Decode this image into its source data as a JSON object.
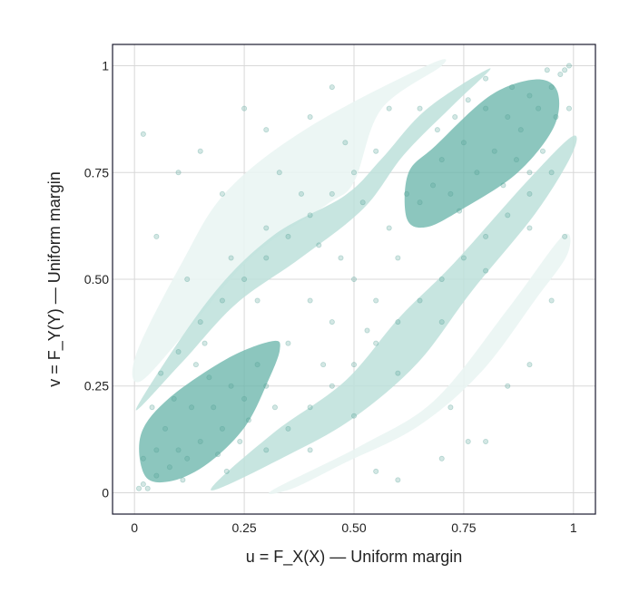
{
  "chart_data": {
    "type": "scatter",
    "xlabel": "u = F_X(X) — Uniform margin",
    "ylabel": "v = F_Y(Y) — Uniform margin",
    "xlim": [
      -0.05,
      1.05
    ],
    "ylim": [
      -0.05,
      1.05
    ],
    "grid": true,
    "xticks": [
      {
        "v": 0,
        "label": "0"
      },
      {
        "v": 0.25,
        "label": "0.25"
      },
      {
        "v": 0.5,
        "label": "0.50"
      },
      {
        "v": 0.75,
        "label": "0.75"
      },
      {
        "v": 1,
        "label": "1"
      }
    ],
    "yticks": [
      {
        "v": 0,
        "label": "0"
      },
      {
        "v": 0.25,
        "label": "0.25"
      },
      {
        "v": 0.5,
        "label": "0.50"
      },
      {
        "v": 0.75,
        "label": "0.75"
      },
      {
        "v": 1,
        "label": "1"
      }
    ],
    "colors": {
      "points": "#4f9e93",
      "level1": "#eaf5f3",
      "level2": "#bde0db",
      "level3": "#6fb8ae",
      "frame": "#1a1a2e",
      "grid": "#d8d8d8"
    },
    "density_contours": [
      {
        "level": 1,
        "polygon": [
          [
            0.004,
            0.325
          ],
          [
            0.107,
            0.537
          ],
          [
            0.211,
            0.707
          ],
          [
            0.397,
            0.856
          ],
          [
            0.665,
            1.0
          ],
          [
            0.7,
            1.0
          ],
          [
            0.562,
            0.898
          ],
          [
            0.5,
            0.728
          ],
          [
            0.438,
            0.675
          ],
          [
            0.273,
            0.558
          ],
          [
            0.128,
            0.389
          ],
          [
            0.014,
            0.261
          ]
        ]
      },
      {
        "level": 1,
        "polygon": [
          [
            0.314,
            0.006
          ],
          [
            0.521,
            0.113
          ],
          [
            0.686,
            0.219
          ],
          [
            0.851,
            0.431
          ],
          [
            0.975,
            0.601
          ],
          [
            0.986,
            0.558
          ],
          [
            0.913,
            0.452
          ],
          [
            0.789,
            0.282
          ],
          [
            0.645,
            0.155
          ],
          [
            0.479,
            0.07
          ],
          [
            0.36,
            0.01
          ]
        ]
      },
      {
        "level": 2,
        "polygon": [
          [
            0.004,
            0.197
          ],
          [
            0.169,
            0.452
          ],
          [
            0.314,
            0.601
          ],
          [
            0.479,
            0.696
          ],
          [
            0.562,
            0.781
          ],
          [
            0.665,
            0.898
          ],
          [
            0.81,
            0.994
          ],
          [
            0.727,
            0.909
          ],
          [
            0.614,
            0.792
          ],
          [
            0.521,
            0.665
          ],
          [
            0.376,
            0.548
          ],
          [
            0.231,
            0.442
          ],
          [
            0.107,
            0.304
          ]
        ]
      },
      {
        "level": 2,
        "polygon": [
          [
            0.174,
            0.006
          ],
          [
            0.314,
            0.138
          ],
          [
            0.479,
            0.261
          ],
          [
            0.603,
            0.41
          ],
          [
            0.727,
            0.537
          ],
          [
            0.893,
            0.728
          ],
          [
            0.996,
            0.834
          ],
          [
            0.996,
            0.792
          ],
          [
            0.913,
            0.654
          ],
          [
            0.769,
            0.473
          ],
          [
            0.645,
            0.304
          ],
          [
            0.5,
            0.176
          ],
          [
            0.355,
            0.091
          ]
        ]
      },
      {
        "level": 3,
        "polygon": [
          [
            0.025,
            0.038
          ],
          [
            0.014,
            0.134
          ],
          [
            0.076,
            0.219
          ],
          [
            0.211,
            0.314
          ],
          [
            0.314,
            0.355
          ],
          [
            0.331,
            0.335
          ],
          [
            0.304,
            0.261
          ],
          [
            0.252,
            0.155
          ],
          [
            0.169,
            0.07
          ],
          [
            0.087,
            0.028
          ]
        ]
      },
      {
        "level": 3,
        "polygon": [
          [
            0.62,
            0.643
          ],
          [
            0.624,
            0.749
          ],
          [
            0.686,
            0.813
          ],
          [
            0.81,
            0.93
          ],
          [
            0.913,
            0.968
          ],
          [
            0.963,
            0.941
          ],
          [
            0.955,
            0.856
          ],
          [
            0.872,
            0.749
          ],
          [
            0.748,
            0.665
          ],
          [
            0.665,
            0.622
          ]
        ]
      }
    ],
    "points": [
      [
        0.01,
        0.01
      ],
      [
        0.02,
        0.02
      ],
      [
        0.03,
        0.01
      ],
      [
        0.05,
        0.04
      ],
      [
        0.08,
        0.06
      ],
      [
        0.1,
        0.1
      ],
      [
        0.12,
        0.08
      ],
      [
        0.15,
        0.12
      ],
      [
        0.07,
        0.15
      ],
      [
        0.18,
        0.2
      ],
      [
        0.2,
        0.15
      ],
      [
        0.22,
        0.25
      ],
      [
        0.25,
        0.22
      ],
      [
        0.13,
        0.2
      ],
      [
        0.17,
        0.27
      ],
      [
        0.28,
        0.3
      ],
      [
        0.3,
        0.25
      ],
      [
        0.05,
        0.1
      ],
      [
        0.09,
        0.22
      ],
      [
        0.24,
        0.12
      ],
      [
        0.02,
        0.08
      ],
      [
        0.04,
        0.2
      ],
      [
        0.11,
        0.03
      ],
      [
        0.19,
        0.09
      ],
      [
        0.26,
        0.17
      ],
      [
        0.14,
        0.3
      ],
      [
        0.21,
        0.05
      ],
      [
        0.06,
        0.28
      ],
      [
        0.16,
        0.35
      ],
      [
        0.32,
        0.2
      ],
      [
        0.98,
        0.99
      ],
      [
        0.99,
        1.0
      ],
      [
        0.97,
        0.98
      ],
      [
        0.95,
        0.95
      ],
      [
        0.92,
        0.9
      ],
      [
        0.9,
        0.93
      ],
      [
        0.88,
        0.85
      ],
      [
        0.85,
        0.88
      ],
      [
        0.82,
        0.8
      ],
      [
        0.8,
        0.9
      ],
      [
        0.78,
        0.75
      ],
      [
        0.75,
        0.82
      ],
      [
        0.72,
        0.7
      ],
      [
        0.7,
        0.78
      ],
      [
        0.68,
        0.72
      ],
      [
        0.93,
        0.8
      ],
      [
        0.86,
        0.95
      ],
      [
        0.76,
        0.92
      ],
      [
        0.65,
        0.68
      ],
      [
        0.9,
        0.75
      ],
      [
        0.96,
        0.88
      ],
      [
        0.84,
        0.72
      ],
      [
        0.74,
        0.66
      ],
      [
        0.8,
        0.97
      ],
      [
        0.69,
        0.85
      ],
      [
        0.99,
        0.9
      ],
      [
        0.62,
        0.7
      ],
      [
        0.87,
        0.78
      ],
      [
        0.94,
        0.99
      ],
      [
        0.73,
        0.88
      ],
      [
        0.2,
        0.45
      ],
      [
        0.25,
        0.5
      ],
      [
        0.3,
        0.55
      ],
      [
        0.35,
        0.6
      ],
      [
        0.4,
        0.65
      ],
      [
        0.45,
        0.7
      ],
      [
        0.5,
        0.75
      ],
      [
        0.55,
        0.8
      ],
      [
        0.15,
        0.4
      ],
      [
        0.1,
        0.33
      ],
      [
        0.3,
        0.62
      ],
      [
        0.38,
        0.7
      ],
      [
        0.48,
        0.82
      ],
      [
        0.58,
        0.9
      ],
      [
        0.22,
        0.55
      ],
      [
        0.28,
        0.45
      ],
      [
        0.42,
        0.58
      ],
      [
        0.52,
        0.68
      ],
      [
        0.12,
        0.5
      ],
      [
        0.33,
        0.75
      ],
      [
        0.3,
        0.1
      ],
      [
        0.35,
        0.15
      ],
      [
        0.4,
        0.2
      ],
      [
        0.45,
        0.25
      ],
      [
        0.5,
        0.3
      ],
      [
        0.55,
        0.35
      ],
      [
        0.6,
        0.4
      ],
      [
        0.65,
        0.45
      ],
      [
        0.7,
        0.5
      ],
      [
        0.75,
        0.55
      ],
      [
        0.8,
        0.6
      ],
      [
        0.85,
        0.65
      ],
      [
        0.9,
        0.7
      ],
      [
        0.95,
        0.75
      ],
      [
        0.4,
        0.1
      ],
      [
        0.5,
        0.18
      ],
      [
        0.6,
        0.28
      ],
      [
        0.7,
        0.4
      ],
      [
        0.8,
        0.52
      ],
      [
        0.9,
        0.62
      ],
      [
        0.45,
        0.4
      ],
      [
        0.5,
        0.5
      ],
      [
        0.55,
        0.45
      ],
      [
        0.4,
        0.45
      ],
      [
        0.6,
        0.55
      ],
      [
        0.35,
        0.35
      ],
      [
        0.47,
        0.55
      ],
      [
        0.53,
        0.38
      ],
      [
        0.43,
        0.3
      ],
      [
        0.58,
        0.62
      ],
      [
        0.05,
        0.6
      ],
      [
        0.1,
        0.75
      ],
      [
        0.02,
        0.84
      ],
      [
        0.15,
        0.8
      ],
      [
        0.25,
        0.9
      ],
      [
        0.3,
        0.85
      ],
      [
        0.45,
        0.95
      ],
      [
        0.6,
        0.03
      ],
      [
        0.7,
        0.08
      ],
      [
        0.8,
        0.12
      ],
      [
        0.85,
        0.25
      ],
      [
        0.95,
        0.45
      ],
      [
        0.98,
        0.6
      ],
      [
        0.72,
        0.2
      ],
      [
        0.76,
        0.12
      ],
      [
        0.55,
        0.05
      ],
      [
        0.2,
        0.7
      ],
      [
        0.4,
        0.88
      ],
      [
        0.9,
        0.3
      ],
      [
        0.65,
        0.9
      ]
    ]
  }
}
